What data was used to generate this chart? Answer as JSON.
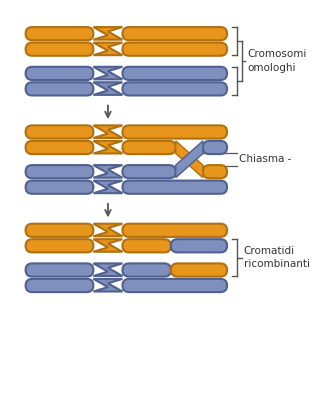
{
  "bg_color": "#ffffff",
  "orange": "#E8951C",
  "orange_edge": "#B07010",
  "blue": "#8090BE",
  "blue_edge": "#506090",
  "arrow_color": "#555555",
  "text_color": "#333333",
  "label1": "Cromosomi\nomologhi",
  "label2": "Chiasma -",
  "label3": "Cromatidi\nricombinanti",
  "fig_w": 3.25,
  "fig_h": 3.98,
  "dpi": 100
}
